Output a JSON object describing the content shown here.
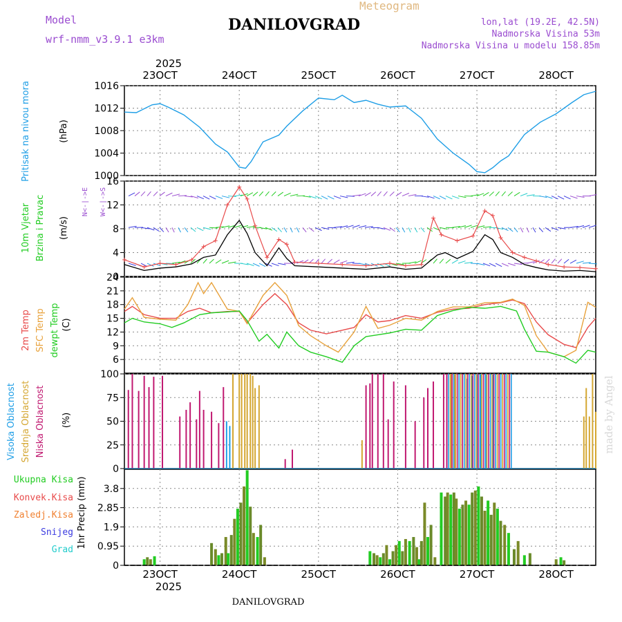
{
  "header": {
    "model_label": "Model",
    "model_name": "wrf-nmm_v3.9.1  e3km",
    "meteogram_label": "Meteogram",
    "station": "DANILOVGRAD",
    "lonlat": "lon,lat (19.2E, 42.5N)",
    "elevation": "Nadmorska Visina 53m",
    "model_elevation": "Nadmorska Visina u modelu 158.85m",
    "year_top": "2025",
    "year_bottom": "2025",
    "footer_station": "DANILOVGRAD",
    "watermark": "made by Angel"
  },
  "colors": {
    "pressure": "#1e9ee6",
    "t2m": "#e84a4a",
    "sfc": "#e8a23c",
    "dew": "#22cc22",
    "high_cloud": "#1e9ee6",
    "mid_cloud": "#d4a630",
    "low_cloud": "#c01870",
    "wind_speed": "#000000",
    "gust": "#e84a4a",
    "total_precip": "#22cc22",
    "conv_precip": "#e84a4a",
    "frz_precip": "#f08030",
    "snow": "#3a3ae0",
    "grad": "#22cccc",
    "model_label": "#9a4cd0"
  },
  "chart_data": {
    "type": "line",
    "dates": [
      "23OCT",
      "24OCT",
      "25OCT",
      "26OCT",
      "27OCT",
      "28OCT"
    ],
    "x_units": "days since 22OCT 00UTC",
    "x_range": [
      0.55,
      6.5
    ],
    "panels": {
      "pressure": {
        "ylabel": "(hPa)",
        "title": "Pritisak na nivou mora",
        "ylim": [
          1000,
          1016
        ],
        "ticks": [
          1000,
          1004,
          1008,
          1012,
          1016
        ],
        "series": [
          {
            "name": "MSLP",
            "x": [
              0.55,
              0.7,
              0.9,
              1.0,
              1.1,
              1.3,
              1.5,
              1.7,
              1.85,
              2.0,
              2.08,
              2.15,
              2.3,
              2.5,
              2.6,
              2.8,
              3.0,
              3.2,
              3.3,
              3.45,
              3.6,
              3.75,
              3.9,
              4.1,
              4.3,
              4.5,
              4.7,
              4.9,
              5.0,
              5.1,
              5.2,
              5.3,
              5.4,
              5.6,
              5.8,
              6.0,
              6.2,
              6.35,
              6.5
            ],
            "y": [
              1011.3,
              1011.2,
              1012.6,
              1012.8,
              1012.2,
              1010.8,
              1008.6,
              1005.6,
              1004.2,
              1001.5,
              1001.3,
              1002.5,
              1006.0,
              1007.2,
              1008.8,
              1011.5,
              1013.8,
              1013.5,
              1014.3,
              1013.0,
              1013.4,
              1012.7,
              1012.2,
              1012.4,
              1010.2,
              1006.5,
              1004.0,
              1002.0,
              1000.7,
              1000.5,
              1001.4,
              1002.6,
              1003.5,
              1007.3,
              1009.5,
              1011.0,
              1013.0,
              1014.4,
              1015.0
            ]
          }
        ]
      },
      "wind": {
        "ylabel": "(m/s)",
        "title_line1": "10m Vjetar",
        "title_line2": "Brzina i Pravac",
        "legend_vertical": "N<-|->E",
        "legend_vertical_sub": "W<-|->S",
        "ylim": [
          0,
          16
        ],
        "ticks": [
          0,
          4,
          8,
          12,
          16
        ],
        "series": [
          {
            "name": "speed",
            "x": [
              0.55,
              0.8,
              1.0,
              1.2,
              1.4,
              1.55,
              1.7,
              1.85,
              2.0,
              2.1,
              2.2,
              2.35,
              2.5,
              2.6,
              2.7,
              3.0,
              3.3,
              3.6,
              3.9,
              4.1,
              4.3,
              4.5,
              4.6,
              4.75,
              4.95,
              5.1,
              5.2,
              5.3,
              5.45,
              5.6,
              5.75,
              5.9,
              6.1,
              6.3,
              6.5
            ],
            "y": [
              2.0,
              1.0,
              1.4,
              1.6,
              2.1,
              3.2,
              3.6,
              7.0,
              9.4,
              7.2,
              4.0,
              1.8,
              4.8,
              3.0,
              1.8,
              1.6,
              1.4,
              1.2,
              1.6,
              1.2,
              1.4,
              3.6,
              4.0,
              3.0,
              4.2,
              7.0,
              6.2,
              4.0,
              3.2,
              2.0,
              1.5,
              1.1,
              0.9,
              1.0,
              0.8
            ]
          },
          {
            "name": "gust",
            "x": [
              0.55,
              0.8,
              1.0,
              1.2,
              1.4,
              1.55,
              1.7,
              1.85,
              2.0,
              2.1,
              2.2,
              2.35,
              2.5,
              2.6,
              2.7,
              3.0,
              3.3,
              3.6,
              3.9,
              4.1,
              4.3,
              4.45,
              4.55,
              4.75,
              4.95,
              5.1,
              5.2,
              5.3,
              5.45,
              5.6,
              5.75,
              5.9,
              6.1,
              6.3,
              6.5
            ],
            "y": [
              2.8,
              1.6,
              2.2,
              2.0,
              2.8,
              5.0,
              6.0,
              12.0,
              15.0,
              13.0,
              8.5,
              3.2,
              6.2,
              5.4,
              2.4,
              2.2,
              2.0,
              1.8,
              2.2,
              1.8,
              2.0,
              9.8,
              7.0,
              6.0,
              6.8,
              11.0,
              10.2,
              6.5,
              4.0,
              3.2,
              2.6,
              2.0,
              1.6,
              1.5,
              1.3
            ]
          }
        ]
      },
      "temperature": {
        "ylabel": "(C)",
        "title_line1": "2m Temp",
        "title_line2": "SFC Temp",
        "title_line3": "dewpt Temp",
        "ylim": [
          3,
          24
        ],
        "ticks": [
          6,
          9,
          12,
          15,
          18,
          21,
          24
        ],
        "series": [
          {
            "name": "t2m",
            "x": [
              0.55,
              0.65,
              0.8,
              1.0,
              1.2,
              1.35,
              1.5,
              1.65,
              1.85,
              2.0,
              2.1,
              2.3,
              2.45,
              2.6,
              2.75,
              2.9,
              3.1,
              3.3,
              3.45,
              3.6,
              3.75,
              3.9,
              4.1,
              4.3,
              4.5,
              4.7,
              4.9,
              5.1,
              5.3,
              5.45,
              5.6,
              5.75,
              5.9,
              6.1,
              6.25,
              6.4,
              6.5
            ],
            "y": [
              16.5,
              17.6,
              15.8,
              15.0,
              15.0,
              16.5,
              17.2,
              16.2,
              16.5,
              16.5,
              14.0,
              18.0,
              20.4,
              18.0,
              14.0,
              12.4,
              11.6,
              12.4,
              13.0,
              15.8,
              14.2,
              14.5,
              15.6,
              15.0,
              16.3,
              17.0,
              17.2,
              18.0,
              18.4,
              19.0,
              18.2,
              14.2,
              11.4,
              9.3,
              8.6,
              13.0,
              15.0
            ]
          },
          {
            "name": "sfc",
            "x": [
              0.55,
              0.65,
              0.8,
              1.0,
              1.2,
              1.35,
              1.48,
              1.55,
              1.65,
              1.85,
              2.0,
              2.1,
              2.3,
              2.45,
              2.6,
              2.75,
              2.9,
              3.1,
              3.25,
              3.45,
              3.6,
              3.75,
              3.9,
              4.1,
              4.3,
              4.5,
              4.7,
              4.9,
              5.1,
              5.3,
              5.45,
              5.6,
              5.75,
              5.9,
              6.1,
              6.25,
              6.4,
              6.5
            ],
            "y": [
              17.0,
              19.5,
              15.2,
              14.8,
              14.6,
              18.0,
              22.8,
              20.4,
              22.8,
              17.0,
              16.5,
              13.8,
              20.0,
              22.8,
              20.0,
              13.4,
              11.2,
              9.0,
              7.6,
              12.0,
              17.6,
              12.8,
              13.5,
              15.0,
              14.6,
              16.5,
              17.5,
              17.5,
              18.4,
              18.5,
              19.2,
              17.8,
              11.2,
              7.6,
              6.6,
              8.0,
              18.5,
              17.4
            ]
          },
          {
            "name": "dew",
            "x": [
              0.55,
              0.65,
              0.8,
              1.0,
              1.15,
              1.3,
              1.5,
              1.65,
              1.85,
              2.0,
              2.1,
              2.25,
              2.35,
              2.5,
              2.6,
              2.75,
              2.9,
              3.1,
              3.3,
              3.45,
              3.6,
              3.75,
              3.9,
              4.1,
              4.3,
              4.5,
              4.7,
              4.9,
              5.1,
              5.3,
              5.5,
              5.6,
              5.75,
              5.9,
              6.1,
              6.25,
              6.4,
              6.5
            ],
            "y": [
              14.0,
              15.0,
              14.2,
              13.8,
              13.0,
              14.0,
              15.8,
              16.2,
              16.4,
              16.6,
              14.5,
              10.0,
              11.5,
              8.5,
              12.0,
              9.0,
              7.6,
              6.6,
              5.4,
              9.0,
              11.0,
              11.4,
              11.8,
              12.6,
              12.4,
              15.6,
              16.7,
              17.4,
              17.2,
              17.6,
              16.6,
              12.6,
              7.8,
              7.6,
              6.6,
              5.2,
              8.0,
              7.6
            ]
          }
        ]
      },
      "clouds": {
        "ylabel": "(%)",
        "title_line1": "Visoka Oblacnost",
        "title_line2": "Srednja Oblacnost",
        "title_line3": "Niska Oblacnost",
        "ylim": [
          0,
          100
        ],
        "ticks": [
          0,
          25,
          50,
          75,
          100
        ],
        "low_cloud": {
          "x": [
            0.6,
            0.65,
            0.73,
            0.8,
            0.86,
            0.92,
            1.03,
            1.25,
            1.33,
            1.38,
            1.46,
            1.5,
            1.55,
            1.65,
            1.74,
            1.8,
            2.58,
            2.67,
            3.6,
            3.65,
            3.68,
            3.75,
            3.82,
            3.88,
            3.95,
            4.1,
            4.22,
            4.33,
            4.38,
            4.45,
            4.58,
            4.62,
            4.68,
            4.71
          ],
          "y": [
            83,
            100,
            82,
            98,
            86,
            97,
            98,
            55,
            62,
            70,
            52,
            82,
            62,
            60,
            48,
            86,
            10,
            20,
            88,
            90,
            100,
            100,
            100,
            52,
            92,
            88,
            50,
            75,
            85,
            92,
            100,
            100,
            100,
            100
          ]
        },
        "mid_cloud": {
          "x": [
            1.92,
            2.0,
            2.03,
            2.07,
            2.1,
            2.14,
            2.17,
            2.2,
            2.25,
            3.55,
            4.68,
            4.72,
            6.35,
            6.38,
            6.42,
            6.46,
            6.5
          ],
          "y": [
            100,
            100,
            100,
            100,
            100,
            100,
            98,
            85,
            88,
            30,
            100,
            100,
            55,
            85,
            55,
            100,
            60
          ]
        },
        "high_cloud": {
          "x": [
            1.84,
            1.88,
            4.88,
            4.94,
            5.0,
            5.05,
            5.12,
            5.2
          ],
          "y": [
            50,
            45,
            95,
            98,
            100,
            100,
            100,
            100
          ]
        }
      },
      "precip": {
        "ylabel": "1hr Precip (mm)",
        "ylim": [
          0,
          4.75
        ],
        "ticks": [
          0,
          0.95,
          1.9,
          2.85,
          3.8
        ],
        "tick_labels": [
          "0",
          "0.95",
          "1.9",
          "2.85",
          "3.8"
        ],
        "legend": {
          "total": "Ukupna Kisa",
          "convective": "Konvek.Kisa",
          "freezing": "Zaledj.Kisa",
          "snow": "Snijeg",
          "grad": "Grad"
        },
        "bars": {
          "x": [
            0.8,
            0.84,
            0.88,
            0.93,
            1.65,
            1.7,
            1.74,
            1.78,
            1.83,
            1.86,
            1.9,
            1.94,
            1.98,
            2.02,
            2.06,
            2.1,
            2.14,
            2.18,
            2.23,
            2.27,
            2.32,
            3.65,
            3.7,
            3.74,
            3.78,
            3.82,
            3.86,
            3.9,
            3.94,
            3.98,
            4.02,
            4.06,
            4.1,
            4.15,
            4.2,
            4.24,
            4.27,
            4.3,
            4.34,
            4.38,
            4.42,
            4.47,
            4.55,
            4.6,
            4.63,
            4.67,
            4.71,
            4.74,
            4.78,
            4.82,
            4.86,
            4.9,
            4.94,
            4.98,
            5.02,
            5.06,
            5.1,
            5.14,
            5.18,
            5.22,
            5.26,
            5.3,
            5.35,
            5.4,
            5.47,
            5.52,
            5.6,
            5.67,
            6.0,
            6.06,
            6.1
          ],
          "y": [
            0.3,
            0.4,
            0.3,
            0.45,
            1.1,
            0.8,
            0.5,
            0.6,
            1.4,
            0.6,
            1.5,
            2.3,
            2.8,
            3.1,
            3.9,
            4.7,
            2.9,
            1.6,
            1.4,
            2.0,
            0.4,
            0.7,
            0.6,
            0.5,
            0.4,
            0.6,
            1.0,
            0.3,
            0.7,
            1.0,
            1.2,
            0.7,
            1.3,
            1.2,
            1.4,
            0.9,
            0.3,
            1.2,
            3.1,
            1.4,
            2.0,
            0.4,
            3.6,
            3.4,
            3.6,
            3.5,
            3.6,
            3.3,
            2.8,
            3.0,
            3.2,
            3.0,
            3.6,
            3.7,
            3.9,
            3.4,
            2.7,
            3.2,
            2.5,
            3.1,
            2.8,
            2.2,
            2.0,
            1.6,
            0.8,
            1.2,
            0.5,
            0.6,
            0.3,
            0.4,
            0.25
          ]
        }
      }
    }
  }
}
